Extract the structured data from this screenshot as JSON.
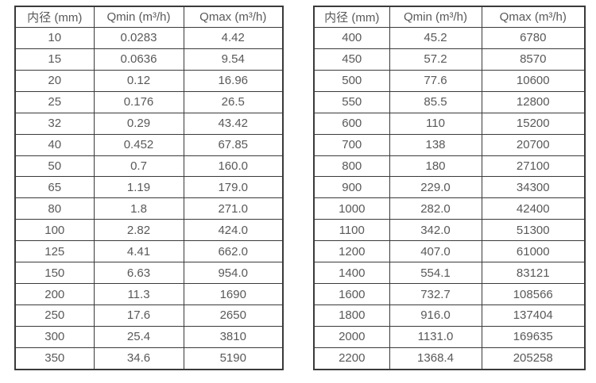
{
  "styles": {
    "text_color": "#595959",
    "border_color": "#3a3a3a",
    "background": "#ffffff"
  },
  "chart_data": [
    {
      "type": "table",
      "title": "",
      "columns": [
        "内径 (mm)",
        "Qmin (m³/h)",
        "Qmax (m³/h)"
      ],
      "rows": [
        [
          "10",
          "0.0283",
          "4.42"
        ],
        [
          "15",
          "0.0636",
          "9.54"
        ],
        [
          "20",
          "0.12",
          "16.96"
        ],
        [
          "25",
          "0.176",
          "26.5"
        ],
        [
          "32",
          "0.29",
          "43.42"
        ],
        [
          "40",
          "0.452",
          "67.85"
        ],
        [
          "50",
          "0.7",
          "160.0"
        ],
        [
          "65",
          "1.19",
          "179.0"
        ],
        [
          "80",
          "1.8",
          "271.0"
        ],
        [
          "100",
          "2.82",
          "424.0"
        ],
        [
          "125",
          "4.41",
          "662.0"
        ],
        [
          "150",
          "6.63",
          "954.0"
        ],
        [
          "200",
          "11.3",
          "1690"
        ],
        [
          "250",
          "17.6",
          "2650"
        ],
        [
          "300",
          "25.4",
          "3810"
        ],
        [
          "350",
          "34.6",
          "5190"
        ]
      ]
    },
    {
      "type": "table",
      "title": "",
      "columns": [
        "内径 (mm)",
        "Qmin (m³/h)",
        "Qmax (m³/h)"
      ],
      "rows": [
        [
          "400",
          "45.2",
          "6780"
        ],
        [
          "450",
          "57.2",
          "8570"
        ],
        [
          "500",
          "77.6",
          "10600"
        ],
        [
          "550",
          "85.5",
          "12800"
        ],
        [
          "600",
          "110",
          "15200"
        ],
        [
          "700",
          "138",
          "20700"
        ],
        [
          "800",
          "180",
          "27100"
        ],
        [
          "900",
          "229.0",
          "34300"
        ],
        [
          "1000",
          "282.0",
          "42400"
        ],
        [
          "1100",
          "342.0",
          "51300"
        ],
        [
          "1200",
          "407.0",
          "61000"
        ],
        [
          "1400",
          "554.1",
          "83121"
        ],
        [
          "1600",
          "732.7",
          "108566"
        ],
        [
          "1800",
          "916.0",
          "137404"
        ],
        [
          "2000",
          "1131.0",
          "169635"
        ],
        [
          "2200",
          "1368.4",
          "205258"
        ]
      ]
    }
  ]
}
